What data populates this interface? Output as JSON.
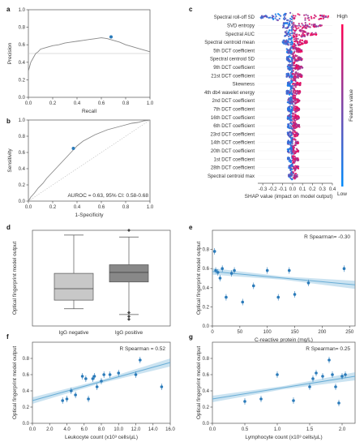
{
  "panels": {
    "a": "a",
    "b": "b",
    "c": "c",
    "d": "d",
    "e": "e",
    "f": "f",
    "g": "g"
  },
  "colors": {
    "high": "#ff0052",
    "low": "#008bfb",
    "curve": "#888888",
    "point": "#2b7bba",
    "box_neg": "#c8c8c8",
    "box_pos": "#888888",
    "reg": "#6aaed6"
  },
  "chart_data": [
    {
      "id": "a",
      "type": "line",
      "xlabel": "Recall",
      "ylabel": "Precision",
      "xlim": [
        0,
        1
      ],
      "ylim": [
        0,
        1
      ],
      "xticks": [
        "0.0",
        "0.2",
        "0.4",
        "0.6",
        "0.8",
        "1.0"
      ],
      "yticks": [
        "0.0",
        "0.2",
        "0.4",
        "0.6",
        "0.8",
        "1.0"
      ],
      "baseline": 0.5,
      "x": [
        0.0,
        0.01,
        0.02,
        0.04,
        0.06,
        0.08,
        0.1,
        0.15,
        0.2,
        0.25,
        0.3,
        0.35,
        0.4,
        0.45,
        0.5,
        0.55,
        0.6,
        0.65,
        0.7,
        0.75,
        0.8,
        0.85,
        0.9,
        0.95,
        1.0
      ],
      "y": [
        0.3,
        0.35,
        0.4,
        0.45,
        0.5,
        0.52,
        0.55,
        0.57,
        0.59,
        0.6,
        0.62,
        0.63,
        0.64,
        0.65,
        0.66,
        0.67,
        0.68,
        0.67,
        0.65,
        0.63,
        0.6,
        0.58,
        0.56,
        0.54,
        0.52
      ],
      "highlight": [
        0.68,
        0.69
      ]
    },
    {
      "id": "b",
      "type": "line",
      "xlabel": "1-Specificity",
      "ylabel": "Sensitivity",
      "xlim": [
        0,
        1
      ],
      "ylim": [
        0,
        1
      ],
      "xticks": [
        "0.0",
        "0.2",
        "0.4",
        "0.6",
        "0.8",
        "1.0"
      ],
      "yticks": [
        "0.0",
        "0.2",
        "0.4",
        "0.6",
        "0.8",
        "1.0"
      ],
      "annotation": "AUROC = 0.63, 95% CI: 0.58-0.68",
      "x": [
        0,
        0.02,
        0.05,
        0.08,
        0.12,
        0.15,
        0.2,
        0.25,
        0.3,
        0.35,
        0.4,
        0.45,
        0.5,
        0.55,
        0.6,
        0.65,
        0.7,
        0.75,
        0.8,
        0.85,
        0.9,
        0.95,
        1.0
      ],
      "y": [
        0,
        0.05,
        0.1,
        0.16,
        0.22,
        0.28,
        0.36,
        0.44,
        0.52,
        0.6,
        0.68,
        0.74,
        0.78,
        0.82,
        0.85,
        0.88,
        0.9,
        0.92,
        0.94,
        0.96,
        0.97,
        0.99,
        1.0
      ],
      "highlight": [
        0.37,
        0.65
      ]
    },
    {
      "id": "c",
      "type": "scatter",
      "xlabel": "SHAP value (impact on model output)",
      "xlim": [
        -0.35,
        0.4
      ],
      "xticks": [
        "-0.3",
        "-0.2",
        "-0.1",
        "0.0",
        "0.1",
        "0.2",
        "0.3",
        "0.4"
      ],
      "xtick_values": [
        -0.3,
        -0.2,
        -0.1,
        0.0,
        0.1,
        0.2,
        0.3,
        0.4
      ],
      "colorbar": {
        "high": "High",
        "low": "Low",
        "label": "Feature value"
      },
      "features": [
        {
          "name": "Spectral roll-off SD",
          "spread": [
            -0.32,
            0.38
          ]
        },
        {
          "name": "SVD entropy",
          "spread": [
            -0.1,
            0.3
          ]
        },
        {
          "name": "Spectral AUC",
          "spread": [
            -0.08,
            0.25
          ]
        },
        {
          "name": "Spectral centroid mean",
          "spread": [
            -0.1,
            0.15
          ]
        },
        {
          "name": "5th DCT coefficient",
          "spread": [
            -0.06,
            0.1
          ]
        },
        {
          "name": "Spectral centroid SD",
          "spread": [
            -0.06,
            0.1
          ]
        },
        {
          "name": "9th DCT coefficient",
          "spread": [
            -0.05,
            0.1
          ]
        },
        {
          "name": "21st DCT coefficient",
          "spread": [
            -0.06,
            0.1
          ]
        },
        {
          "name": "Skewness",
          "spread": [
            -0.05,
            0.08
          ]
        },
        {
          "name": "4th db4 wavelet energy",
          "spread": [
            -0.06,
            0.08
          ]
        },
        {
          "name": "2nd DCT coefficient",
          "spread": [
            -0.05,
            0.07
          ]
        },
        {
          "name": "7th DCT coefficient",
          "spread": [
            -0.05,
            0.07
          ]
        },
        {
          "name": "16th DCT coefficient",
          "spread": [
            -0.05,
            0.07
          ]
        },
        {
          "name": "6th DCT coefficient",
          "spread": [
            -0.05,
            0.07
          ]
        },
        {
          "name": "23rd DCT coefficient",
          "spread": [
            -0.05,
            0.06
          ]
        },
        {
          "name": "14th DCT coefficient",
          "spread": [
            -0.05,
            0.06
          ]
        },
        {
          "name": "20th DCT coefficient",
          "spread": [
            -0.05,
            0.06
          ]
        },
        {
          "name": "1st DCT coefficient",
          "spread": [
            -0.05,
            0.06
          ]
        },
        {
          "name": "28th DCT coefficient",
          "spread": [
            -0.04,
            0.06
          ]
        },
        {
          "name": "Spectral centroid max",
          "spread": [
            -0.04,
            0.05
          ]
        }
      ]
    },
    {
      "id": "d",
      "type": "bar",
      "ylabel": "Optical fingerprint model output",
      "categories": [
        "IgG negative",
        "IgG positive"
      ],
      "boxes": [
        {
          "whisker_low": 0.18,
          "q1": 0.27,
          "median": 0.39,
          "q3": 0.55,
          "whisker_high": 0.95,
          "fliers": []
        },
        {
          "whisker_low": 0.12,
          "q1": 0.46,
          "median": 0.56,
          "q3": 0.64,
          "whisker_high": 0.93,
          "fliers": [
            0.14,
            0.1,
            0.07,
            1.0
          ]
        }
      ],
      "ylim": [
        0,
        1
      ]
    },
    {
      "id": "e",
      "type": "scatter",
      "xlabel": "C-reactive protein (mg/L)",
      "ylabel": "Optical fingerprint model output",
      "annotation": "R Spearman= -0.30",
      "xlim": [
        0,
        260
      ],
      "ylim": [
        0,
        1
      ],
      "xticks": [
        "0",
        "50",
        "100",
        "150",
        "200",
        "250"
      ],
      "xtick_values": [
        0,
        50,
        100,
        150,
        200,
        250
      ],
      "yticks": [
        "0.0",
        "0.2",
        "0.4",
        "0.6",
        "0.8"
      ],
      "ytick_values": [
        0.0,
        0.2,
        0.4,
        0.6,
        0.8
      ],
      "x": [
        4,
        6,
        10,
        14,
        18,
        25,
        35,
        40,
        55,
        75,
        100,
        120,
        140,
        150,
        175,
        240
      ],
      "y": [
        0.78,
        0.58,
        0.56,
        0.5,
        0.6,
        0.3,
        0.55,
        0.58,
        0.25,
        0.42,
        0.58,
        0.3,
        0.58,
        0.33,
        0.45,
        0.6
      ],
      "reg": [
        [
          0,
          0.57
        ],
        [
          260,
          0.43
        ]
      ]
    },
    {
      "id": "f",
      "type": "scatter",
      "xlabel": "Leukocyte count (x10³ cells/µL)",
      "ylabel": "Optical fingerprint model output",
      "annotation": "R Spearman = 0.52",
      "xlim": [
        0,
        16
      ],
      "ylim": [
        0,
        1
      ],
      "xticks": [
        "0.0",
        "2.0",
        "4.0",
        "6.0",
        "8.0",
        "10.0",
        "12.0",
        "14.0",
        "16.0"
      ],
      "xtick_values": [
        0,
        2,
        4,
        6,
        8,
        10,
        12,
        14,
        16
      ],
      "yticks": [
        "0.0",
        "0.2",
        "0.4",
        "0.6",
        "0.8"
      ],
      "ytick_values": [
        0.0,
        0.2,
        0.4,
        0.6,
        0.8
      ],
      "x": [
        3.5,
        4.0,
        4.5,
        5.0,
        5.8,
        6.2,
        6.5,
        7.0,
        7.2,
        7.5,
        8.0,
        8.3,
        9.0,
        10.0,
        12.0,
        12.5,
        15.0
      ],
      "y": [
        0.28,
        0.3,
        0.4,
        0.35,
        0.58,
        0.55,
        0.3,
        0.55,
        0.58,
        0.45,
        0.52,
        0.6,
        0.6,
        0.62,
        0.6,
        0.78,
        0.45
      ],
      "reg": [
        [
          0,
          0.28
        ],
        [
          16,
          0.75
        ]
      ]
    },
    {
      "id": "g",
      "type": "scatter",
      "xlabel": "Lymphocyte count (x10³ cells/µL)",
      "ylabel": "Optical fingerprint model output",
      "annotation": "R Spearman= 0.25",
      "xlim": [
        0,
        2.2
      ],
      "ylim": [
        0,
        1
      ],
      "xticks": [
        "0.0",
        "0.5",
        "1.0",
        "1.5",
        "2.0"
      ],
      "xtick_values": [
        0.0,
        0.5,
        1.0,
        1.5,
        2.0
      ],
      "yticks": [
        "0.0",
        "0.2",
        "0.4",
        "0.6",
        "0.8"
      ],
      "ytick_values": [
        0.0,
        0.2,
        0.4,
        0.6,
        0.8
      ],
      "x": [
        0.5,
        0.75,
        1.0,
        1.25,
        1.5,
        1.55,
        1.6,
        1.7,
        1.8,
        1.85,
        1.9,
        1.95,
        2.0,
        2.05
      ],
      "y": [
        0.27,
        0.3,
        0.6,
        0.28,
        0.45,
        0.55,
        0.62,
        0.58,
        0.78,
        0.6,
        0.45,
        0.25,
        0.58,
        0.6
      ],
      "reg": [
        [
          0,
          0.3
        ],
        [
          2.2,
          0.58
        ]
      ]
    }
  ]
}
